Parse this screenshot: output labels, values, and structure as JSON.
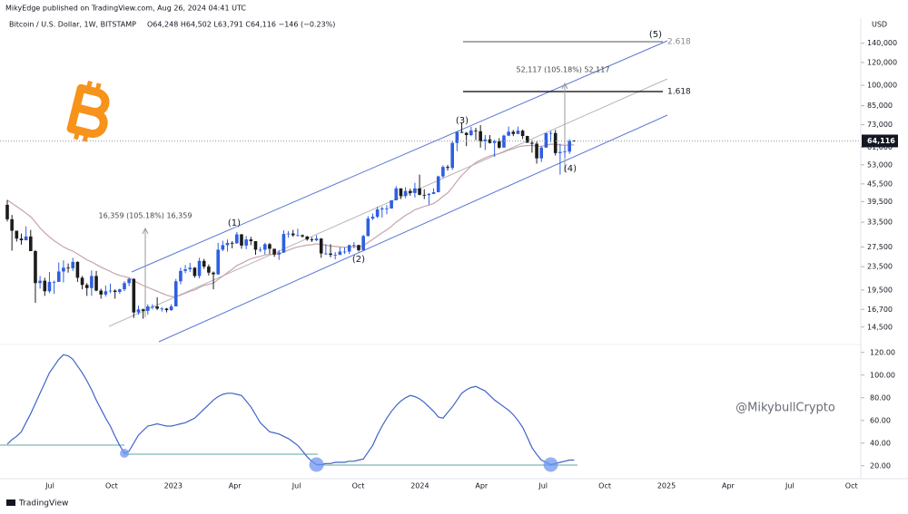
{
  "header": {
    "publisher": "MikyEdge published on TradingView.com, Aug 26, 2024 04:41 UTC",
    "symbol": "Bitcoin / U.S. Dollar, 1W, BITSTAMP",
    "ohlc": "O64,248 H64,502 L63,791 C64,116 −146 (−0.23%)"
  },
  "annotations": {
    "wave_1": "(1)",
    "wave_2": "(2)",
    "wave_3": "(3)",
    "wave_4": "(4)",
    "wave_5": "(5)",
    "measure_1": "16,359 (105.18%) 16,359",
    "measure_2": "52,117 (105.18%) 52,117",
    "fib_1": "1.618",
    "fib_2": "2.618",
    "watermark": "@MikybullCrypto"
  },
  "footer": "TradingView",
  "chart_data": [
    {
      "type": "candlestick",
      "currency": "USD",
      "log_scale": true,
      "ylim": [
        12800,
        171000
      ],
      "yticks": [
        {
          "value": 140000,
          "label": "140,000"
        },
        {
          "value": 120000,
          "label": "120,000"
        },
        {
          "value": 100000,
          "label": "100,000"
        },
        {
          "value": 85000,
          "label": "85,000"
        },
        {
          "value": 73000,
          "label": "73,000"
        },
        {
          "value": 61000,
          "label": "61,000"
        },
        {
          "value": 53000,
          "label": "53,000"
        },
        {
          "value": 45500,
          "label": "45,500"
        },
        {
          "value": 39500,
          "label": "39,500"
        },
        {
          "value": 33500,
          "label": "33,500"
        },
        {
          "value": 27500,
          "label": "27,500"
        },
        {
          "value": 23500,
          "label": "23,500"
        },
        {
          "value": 19500,
          "label": "19,500"
        },
        {
          "value": 16700,
          "label": "16,700"
        },
        {
          "value": 14500,
          "label": "14,500"
        }
      ],
      "time_labels": [
        "Jul",
        "Oct",
        "2023",
        "Apr",
        "Jul",
        "Oct",
        "2024",
        "Apr",
        "Jul",
        "Oct",
        "2025",
        "Apr",
        "Jul",
        "Oct"
      ],
      "up_color": "#2f5fe0",
      "down_color": "#1c1c1c",
      "last_value_label": "64,116",
      "open": [
        38500,
        34300,
        31300,
        29400,
        29000,
        29900,
        26600,
        20600,
        21000,
        19300,
        20800,
        20800,
        22600,
        23300,
        23200,
        24400,
        21500,
        20300,
        19800,
        21800,
        19400,
        18800,
        19300,
        19400,
        19200,
        19600,
        20600,
        21300,
        16300,
        16700,
        16500,
        17100,
        17100,
        16800,
        16800,
        16600,
        17100,
        20900,
        22700,
        23000,
        23300,
        21800,
        24600,
        23500,
        22400,
        22100,
        26900,
        27900,
        28400,
        28300,
        30400,
        27800,
        29200,
        28800,
        26900,
        26900,
        28100,
        27100,
        25900,
        26300,
        30500,
        30600,
        30200,
        30200,
        29900,
        29200,
        29000,
        29400,
        26100,
        26100,
        25800,
        25800,
        26500,
        26500,
        27900,
        27900,
        26800,
        30000,
        34500,
        35000,
        37100,
        37400,
        37400,
        39900,
        43900,
        41300,
        43000,
        42300,
        43900,
        41700,
        41600,
        42000,
        42600,
        48300,
        52100,
        51700,
        63100,
        68900,
        68400,
        67200,
        69700,
        69300,
        63900,
        64900,
        63100,
        64000,
        60800,
        66900,
        69000,
        67800,
        69600,
        66700,
        63200,
        62700,
        55800,
        60800,
        68200,
        68300,
        58200,
        58700,
        58900,
        64248
      ],
      "high": [
        40000,
        35500,
        31300,
        30600,
        32400,
        31500,
        26800,
        21800,
        21500,
        22500,
        21000,
        24300,
        24700,
        24100,
        25200,
        24500,
        21800,
        20600,
        22800,
        22700,
        19700,
        20200,
        20500,
        19600,
        19700,
        20900,
        21500,
        21400,
        17200,
        16800,
        17400,
        17400,
        18400,
        17000,
        16900,
        17400,
        21300,
        23300,
        23800,
        24200,
        23400,
        25200,
        25000,
        23900,
        22600,
        28400,
        28900,
        29200,
        28800,
        31000,
        30500,
        30000,
        29800,
        28800,
        27500,
        28400,
        28400,
        27100,
        26800,
        31400,
        31200,
        31500,
        31800,
        30400,
        30000,
        29700,
        30200,
        29500,
        28100,
        28100,
        26400,
        27400,
        27400,
        28000,
        28600,
        28000,
        30300,
        35200,
        35900,
        37900,
        37900,
        38400,
        39900,
        44700,
        43900,
        44300,
        43800,
        45900,
        49000,
        43600,
        42300,
        43900,
        48600,
        52800,
        52900,
        64000,
        69200,
        73800,
        68900,
        71800,
        71200,
        72800,
        67200,
        67200,
        64700,
        65500,
        67500,
        71900,
        70000,
        71900,
        70200,
        66800,
        64500,
        63800,
        61500,
        68400,
        69400,
        70000,
        62700,
        61800,
        65000,
        64502
      ],
      "low": [
        33700,
        26700,
        28700,
        28000,
        29000,
        26600,
        17600,
        19700,
        18600,
        19000,
        18900,
        20800,
        20700,
        22400,
        22700,
        20800,
        19600,
        18600,
        18600,
        19300,
        18200,
        18500,
        19000,
        18200,
        18900,
        19300,
        20100,
        15600,
        16000,
        15500,
        16000,
        16700,
        16600,
        16400,
        16300,
        16500,
        17100,
        20400,
        22300,
        22500,
        21500,
        21400,
        23100,
        21900,
        19600,
        22000,
        26600,
        26500,
        27200,
        28200,
        27100,
        27000,
        27900,
        25800,
        26400,
        25900,
        26000,
        25400,
        24800,
        26200,
        29600,
        29800,
        29900,
        29600,
        28900,
        28600,
        28800,
        25200,
        25800,
        25300,
        24900,
        25800,
        26000,
        26000,
        27200,
        26500,
        26600,
        29900,
        34100,
        34600,
        34800,
        35700,
        37300,
        39900,
        40300,
        40600,
        41400,
        40800,
        41500,
        40300,
        38500,
        41900,
        42500,
        47700,
        50600,
        50900,
        59100,
        68600,
        61500,
        66600,
        64500,
        60800,
        59600,
        62800,
        56500,
        60200,
        60800,
        66600,
        66600,
        67700,
        65100,
        63200,
        58400,
        53500,
        54200,
        60700,
        63500,
        57100,
        49000,
        56100,
        57800,
        63791
      ],
      "close": [
        34300,
        31300,
        29400,
        29000,
        29900,
        26600,
        20600,
        21000,
        19300,
        20800,
        20800,
        22600,
        23300,
        23200,
        24400,
        21500,
        20300,
        19800,
        21800,
        19400,
        18800,
        19300,
        19400,
        19200,
        19600,
        20600,
        21300,
        16300,
        16700,
        16500,
        17100,
        17100,
        16800,
        16800,
        16600,
        17100,
        20900,
        22700,
        23000,
        23300,
        21800,
        24600,
        23500,
        22400,
        22100,
        26900,
        27900,
        28400,
        28300,
        30400,
        27800,
        29200,
        28800,
        26900,
        26900,
        28100,
        27100,
        25900,
        26300,
        30500,
        30600,
        30200,
        30200,
        29900,
        29200,
        29000,
        29400,
        26100,
        26100,
        25800,
        25800,
        26500,
        26500,
        27900,
        27900,
        26800,
        30000,
        34500,
        35000,
        37100,
        37400,
        37400,
        39900,
        43900,
        41300,
        43000,
        42300,
        43900,
        41700,
        41600,
        42000,
        42600,
        48300,
        52100,
        51700,
        63100,
        68900,
        68400,
        67200,
        69700,
        69300,
        63900,
        64900,
        63100,
        64000,
        60800,
        66900,
        69000,
        67800,
        69600,
        66700,
        63200,
        62700,
        55800,
        60800,
        68200,
        68300,
        58200,
        58700,
        58900,
        64200,
        64116
      ],
      "ma": {
        "color": "#c8a3ab",
        "values": [
          40000,
          39000,
          38000,
          37000,
          36000,
          35000,
          33500,
          32000,
          30800,
          29800,
          28900,
          28200,
          27500,
          27000,
          26600,
          26000,
          25400,
          24800,
          24400,
          23900,
          23400,
          23000,
          22600,
          22200,
          21900,
          21700,
          21500,
          21000,
          20600,
          20200,
          19900,
          19600,
          19300,
          19000,
          18700,
          18500,
          18500,
          18700,
          19000,
          19300,
          19500,
          19900,
          20200,
          20400,
          20600,
          21200,
          21800,
          22400,
          23000,
          23700,
          24100,
          24600,
          25000,
          25300,
          25500,
          25800,
          25900,
          25900,
          26000,
          26400,
          26800,
          27200,
          27500,
          27700,
          27900,
          28000,
          28200,
          28000,
          27900,
          27700,
          27600,
          27500,
          27400,
          27500,
          27600,
          27500,
          27800,
          28500,
          29200,
          30000,
          30800,
          31500,
          32400,
          33500,
          34400,
          35400,
          36100,
          37000,
          37500,
          38000,
          38400,
          38900,
          39900,
          41200,
          42300,
          44200,
          46500,
          48700,
          50500,
          52400,
          54000,
          55000,
          56000,
          56800,
          57500,
          57900,
          58700,
          59600,
          60300,
          61100,
          61600,
          61800,
          61900,
          61500,
          61400,
          62000,
          62500,
          62400,
          62100,
          61900,
          62100,
          62100
        ]
      }
    },
    {
      "type": "line",
      "color": "#3f63c9",
      "ylim": [
        11,
        127
      ],
      "yticks": [
        {
          "value": 120,
          "label": "120.00"
        },
        {
          "value": 100,
          "label": "100.00"
        },
        {
          "value": 80,
          "label": "80.00"
        },
        {
          "value": 60,
          "label": "60.00"
        },
        {
          "value": 40,
          "label": "40.00"
        },
        {
          "value": 20,
          "label": "20.00"
        }
      ],
      "values": [
        39,
        43,
        46,
        50,
        58,
        66,
        75,
        84,
        93,
        102,
        108,
        114,
        118,
        117,
        114,
        108,
        102,
        95,
        87,
        78,
        70,
        62,
        55,
        46,
        38,
        31,
        33,
        40,
        47,
        51,
        55,
        56,
        57,
        56,
        55,
        55,
        56,
        57,
        58,
        60,
        62,
        66,
        70,
        74,
        78,
        81,
        83,
        84,
        84,
        83,
        82,
        77,
        72,
        65,
        58,
        54,
        50,
        49,
        48,
        46,
        44,
        41,
        38,
        33,
        28,
        24,
        21,
        21,
        22,
        22,
        23,
        23,
        23,
        24,
        24,
        25,
        26,
        32,
        38,
        47,
        55,
        62,
        68,
        73,
        77,
        80,
        82,
        81,
        79,
        76,
        72,
        68,
        63,
        62,
        67,
        72,
        78,
        84,
        87,
        89,
        90,
        88,
        86,
        82,
        78,
        75,
        72,
        69,
        65,
        60,
        54,
        45,
        36,
        30,
        25,
        23,
        21,
        22,
        23,
        24,
        25,
        25
      ]
    }
  ]
}
